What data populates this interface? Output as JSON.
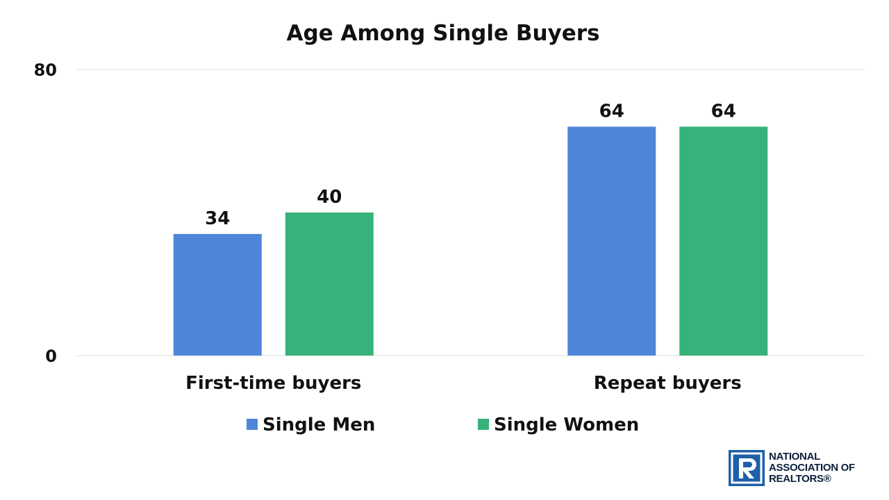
{
  "chart_data": {
    "type": "bar",
    "title": "Age Among Single Buyers",
    "categories": [
      "First-time buyers",
      "Repeat buyers"
    ],
    "series": [
      {
        "name": "Single Men",
        "values": [
          34,
          64
        ],
        "color": "#4f86d9"
      },
      {
        "name": "Single Women",
        "values": [
          40,
          64
        ],
        "color": "#36b37a"
      }
    ],
    "ylim": [
      0,
      80
    ],
    "yticks": [
      0,
      80
    ],
    "xlabel": "",
    "ylabel": "",
    "grid": true,
    "legend": "bottom"
  },
  "logo": {
    "name": "NATIONAL ASSOCIATION OF REALTORS®",
    "mark_color": "#1f5fa8"
  }
}
